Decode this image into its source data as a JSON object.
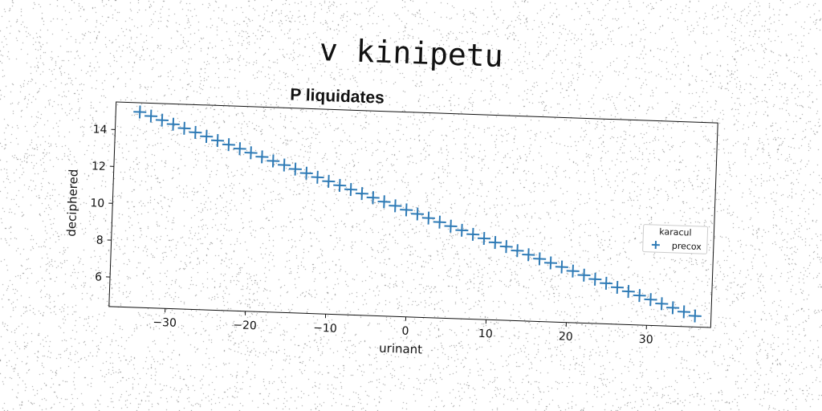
{
  "suptitle": "v kinipetu",
  "colors": {
    "series": "#2f7bb6",
    "axis": "#111111"
  },
  "chart_data": {
    "type": "scatter",
    "title": "P liquidates",
    "xlabel": "urinant",
    "ylabel": "deciphered",
    "xlim": [
      -37,
      38
    ],
    "ylim": [
      4.4,
      15.5
    ],
    "xticks": [
      -30,
      -20,
      -10,
      0,
      10,
      20,
      30
    ],
    "xtick_labels": [
      "−30",
      "−20",
      "−10",
      "0",
      "10",
      "20",
      "30"
    ],
    "yticks": [
      6,
      8,
      10,
      12,
      14
    ],
    "ytick_labels": [
      "6",
      "8",
      "10",
      "12",
      "14"
    ],
    "marker": "+",
    "grid": false,
    "legend": {
      "title": "karacul",
      "placement": "right"
    },
    "series": [
      {
        "name": "precox",
        "x": [
          -34.0,
          -32.6,
          -31.2,
          -29.8,
          -28.4,
          -27.0,
          -25.6,
          -24.2,
          -22.8,
          -21.4,
          -20.0,
          -18.6,
          -17.2,
          -15.8,
          -14.4,
          -13.0,
          -11.6,
          -10.2,
          -8.8,
          -7.4,
          -6.0,
          -4.6,
          -3.2,
          -1.8,
          -0.4,
          1.0,
          2.4,
          3.8,
          5.2,
          6.6,
          8.0,
          9.4,
          10.8,
          12.2,
          13.6,
          15.0,
          16.4,
          17.8,
          19.2,
          20.6,
          22.0,
          23.4,
          24.8,
          26.2,
          27.6,
          29.0,
          30.4,
          31.8,
          33.2,
          34.6,
          36.0
        ],
        "y": [
          15.0,
          14.8,
          14.6,
          14.4,
          14.2,
          14.0,
          13.8,
          13.6,
          13.4,
          13.2,
          13.0,
          12.8,
          12.6,
          12.4,
          12.2,
          12.0,
          11.8,
          11.6,
          11.4,
          11.2,
          11.0,
          10.8,
          10.6,
          10.4,
          10.2,
          10.0,
          9.8,
          9.6,
          9.4,
          9.2,
          9.0,
          8.8,
          8.6,
          8.4,
          8.2,
          8.0,
          7.8,
          7.6,
          7.4,
          7.2,
          7.0,
          6.8,
          6.6,
          6.4,
          6.2,
          6.0,
          5.8,
          5.6,
          5.4,
          5.2,
          5.0
        ]
      }
    ]
  }
}
